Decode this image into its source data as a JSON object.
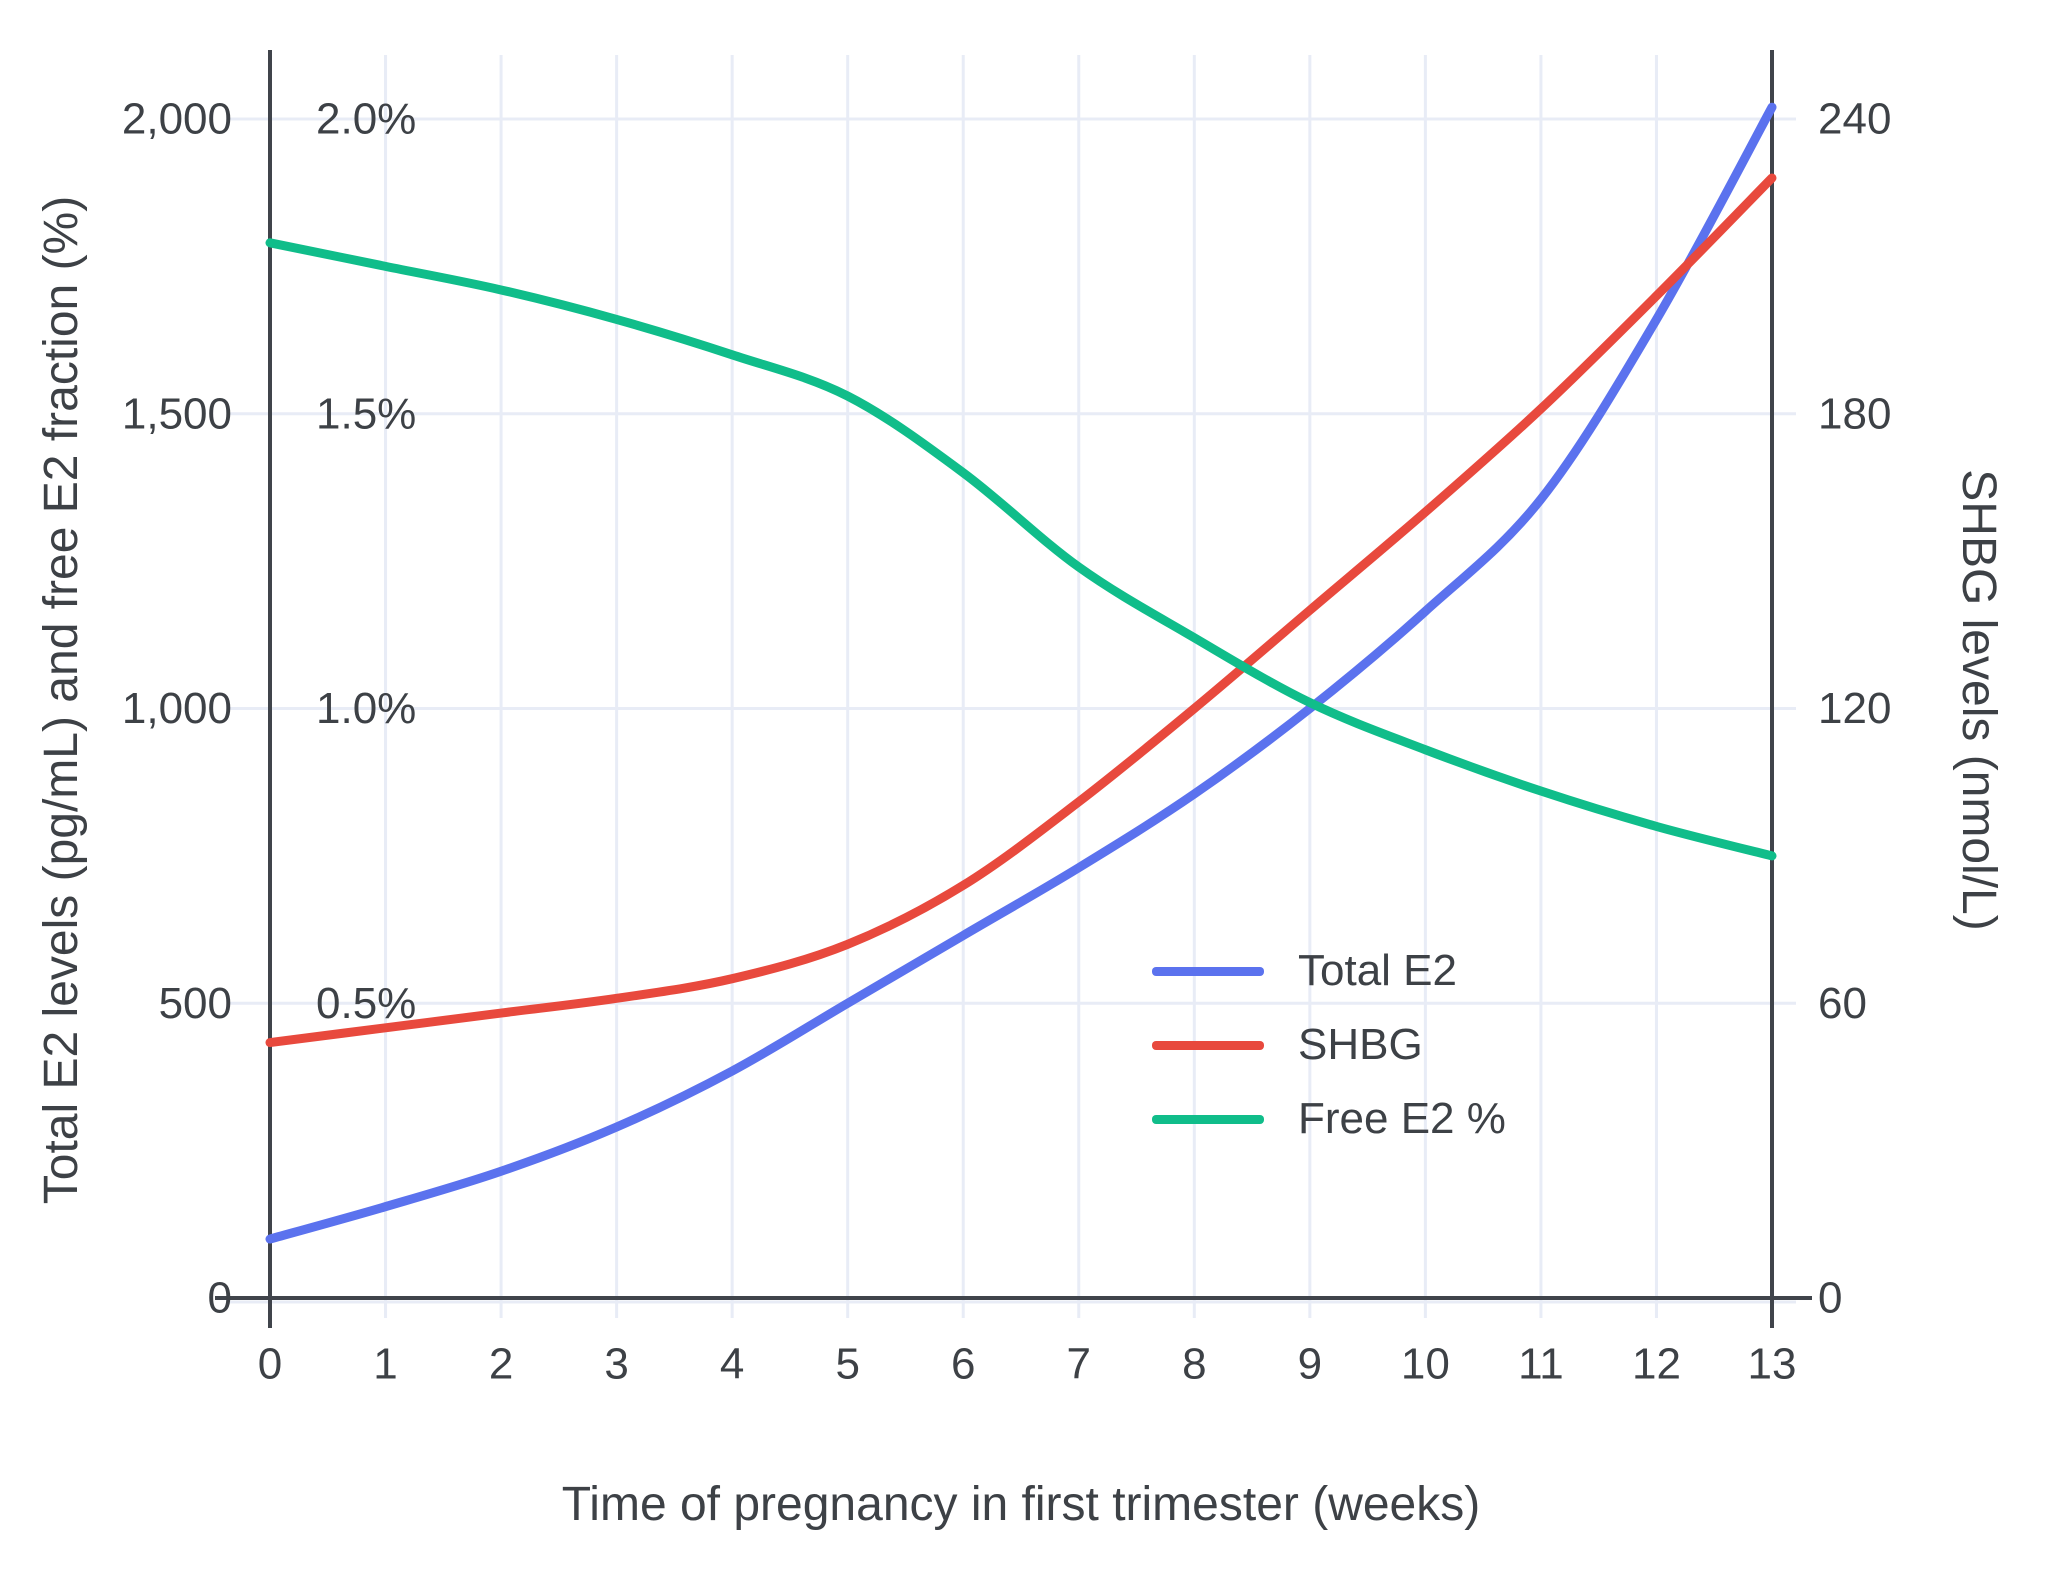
{
  "axes": {
    "x": {
      "title": "Time of pregnancy in first trimester (weeks)",
      "ticks": [
        "0",
        "1",
        "2",
        "3",
        "4",
        "5",
        "6",
        "7",
        "8",
        "9",
        "10",
        "11",
        "12",
        "13"
      ],
      "range": [
        0,
        13
      ]
    },
    "left": {
      "title": "Total E2 levels (pg/mL) and free E2 fraction (%)",
      "ticks": [
        {
          "value": 0,
          "label": "0"
        },
        {
          "value": 500,
          "label": "500"
        },
        {
          "value": 1000,
          "label": "1,000"
        },
        {
          "value": 1500,
          "label": "1,500"
        },
        {
          "value": 2000,
          "label": "2,000"
        }
      ],
      "inner_percent_ticks": [
        {
          "value": 500,
          "label": "0.5%"
        },
        {
          "value": 1000,
          "label": "1.0%"
        },
        {
          "value": 1500,
          "label": "1.5%"
        },
        {
          "value": 2000,
          "label": "2.0%"
        }
      ],
      "range": [
        0,
        2000
      ]
    },
    "right": {
      "title": "SHBG levels (nmol/L)",
      "ticks": [
        {
          "value": 0,
          "label": "0"
        },
        {
          "value": 60,
          "label": "60"
        },
        {
          "value": 120,
          "label": "120"
        },
        {
          "value": 180,
          "label": "180"
        },
        {
          "value": 240,
          "label": "240"
        }
      ],
      "range": [
        0,
        240
      ]
    }
  },
  "legend": {
    "items": [
      {
        "label": "Total E2",
        "color": "#5b72ee"
      },
      {
        "label": "SHBG",
        "color": "#e8493d"
      },
      {
        "label": "Free E2 %",
        "color": "#10bd8a"
      }
    ]
  },
  "colors": {
    "grid": "#e8ecf6",
    "axis_line": "#40444b",
    "text": "#3d4146",
    "background": "#ffffff",
    "total_e2": "#5b72ee",
    "shbg": "#e8493d",
    "free_e2": "#10bd8a"
  },
  "chart_data": {
    "type": "line",
    "title": "",
    "xlabel": "Time of pregnancy in first trimester (weeks)",
    "ylabel_left": "Total E2 levels (pg/mL) and free E2 fraction (%)",
    "ylabel_right": "SHBG levels (nmol/L)",
    "x": [
      0,
      1,
      2,
      3,
      4,
      5,
      6,
      7,
      8,
      9,
      10,
      11,
      12,
      13
    ],
    "left_axis_range": [
      0,
      2000
    ],
    "right_axis_range": [
      0,
      240
    ],
    "percent_mapping_note": "Free E2 % is plotted on the left axis where 1.0% aligns with 1,000 pg/mL",
    "grid": true,
    "legend_position": "inside lower-right",
    "series": [
      {
        "name": "Total E2",
        "axis": "left",
        "units": "pg/mL",
        "color": "#5b72ee",
        "values": [
          100,
          155,
          215,
          290,
          385,
          500,
          615,
          730,
          855,
          1000,
          1165,
          1355,
          1660,
          2020
        ]
      },
      {
        "name": "SHBG",
        "axis": "right",
        "units": "nmol/L",
        "color": "#e8493d",
        "values": [
          52,
          55,
          58,
          61,
          65,
          72,
          84,
          101,
          120,
          140,
          160,
          181,
          204,
          228
        ]
      },
      {
        "name": "Free E2 %",
        "axis": "left_percent",
        "units": "%",
        "color": "#10bd8a",
        "values": [
          1.79,
          1.75,
          1.71,
          1.66,
          1.6,
          1.53,
          1.4,
          1.24,
          1.12,
          1.01,
          0.93,
          0.86,
          0.8,
          0.75
        ]
      }
    ]
  }
}
